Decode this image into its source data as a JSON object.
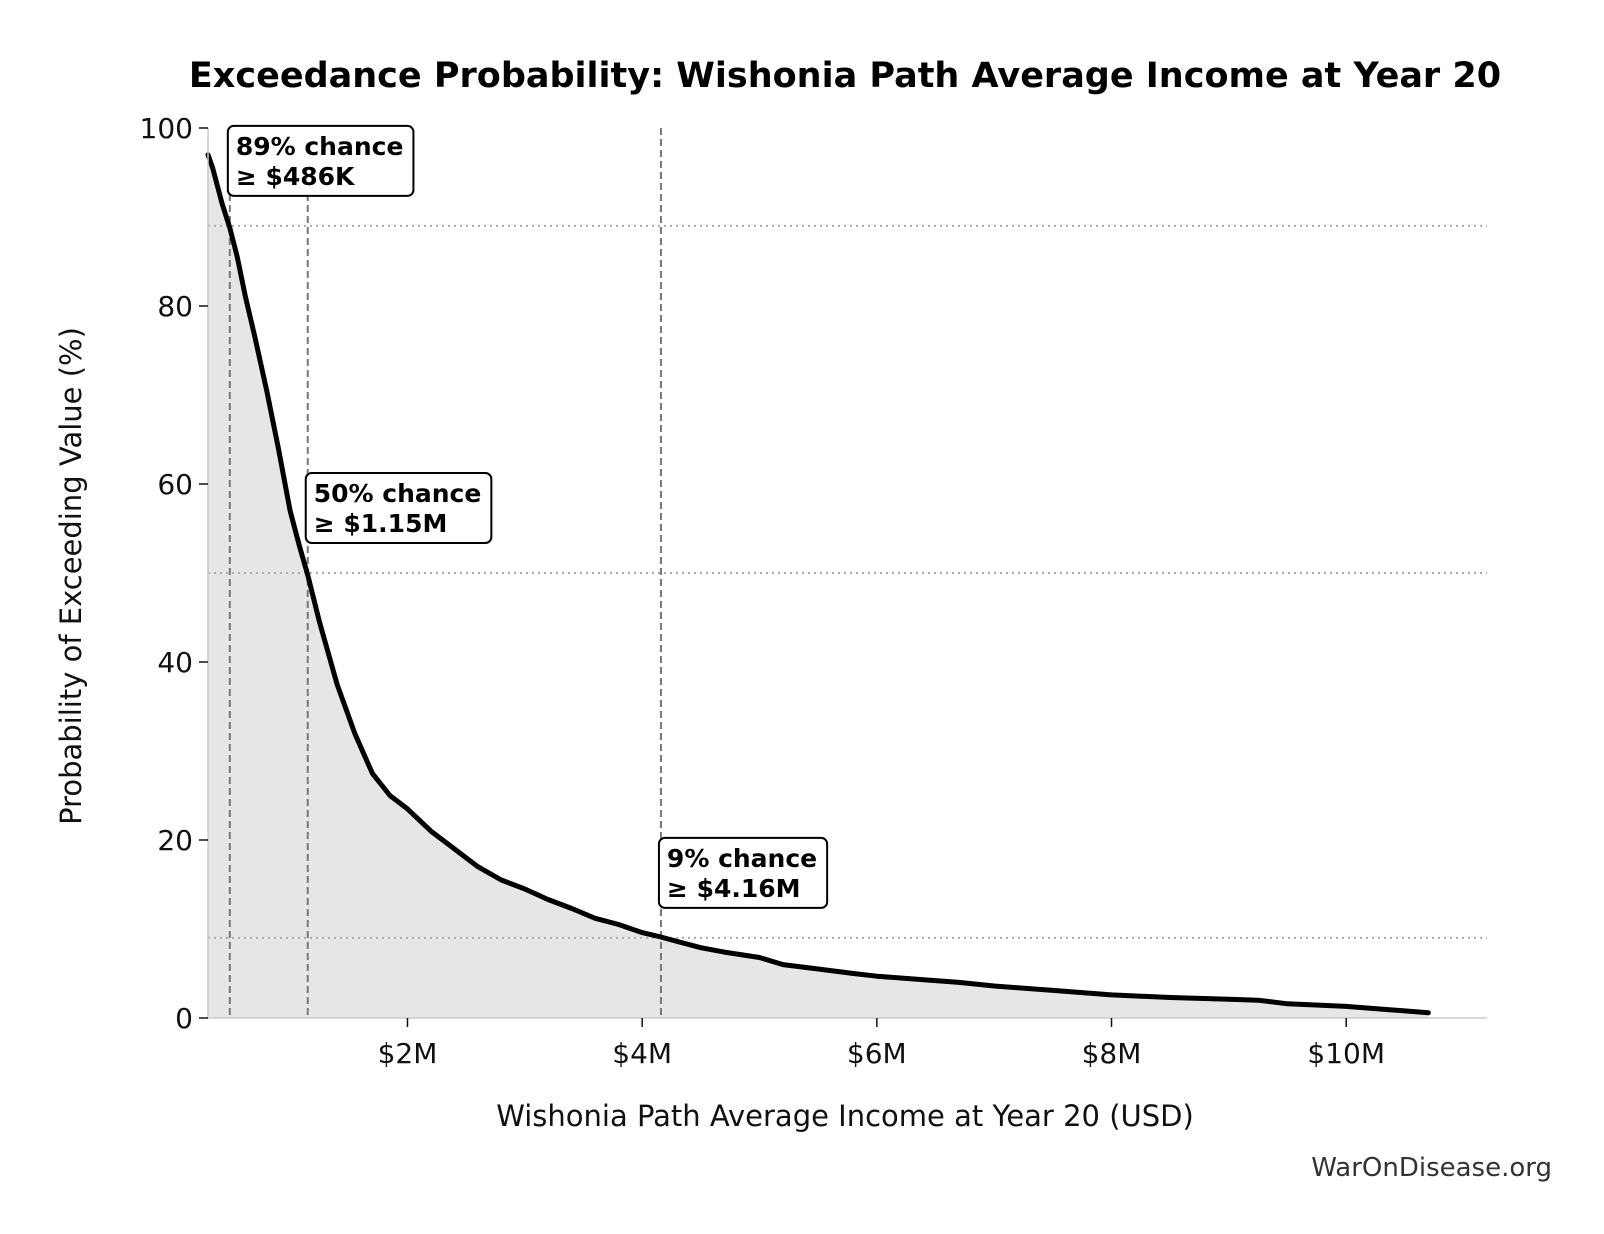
{
  "chart_data": {
    "type": "area",
    "title": "Exceedance Probability: Wishonia Path Average Income at Year 20",
    "xlabel": "Wishonia Path Average Income at Year 20 (USD)",
    "ylabel": "Probability of Exceeding Value (%)",
    "xlim": [
      300000,
      11200000
    ],
    "ylim": [
      0,
      100
    ],
    "x_ticks": [
      {
        "value": 2000000,
        "label": "$2M"
      },
      {
        "value": 4000000,
        "label": "$4M"
      },
      {
        "value": 6000000,
        "label": "$6M"
      },
      {
        "value": 8000000,
        "label": "$8M"
      },
      {
        "value": 10000000,
        "label": "$10M"
      }
    ],
    "y_ticks": [
      {
        "value": 0,
        "label": "0"
      },
      {
        "value": 20,
        "label": "20"
      },
      {
        "value": 40,
        "label": "40"
      },
      {
        "value": 60,
        "label": "60"
      },
      {
        "value": 80,
        "label": "80"
      },
      {
        "value": 100,
        "label": "100"
      }
    ],
    "series": [
      {
        "x": [
          300000,
          340000,
          380000,
          420000,
          486000,
          550000,
          620000,
          700000,
          800000,
          900000,
          1000000,
          1080000,
          1150000,
          1250000,
          1400000,
          1550000,
          1700000,
          1850000,
          2000000,
          2200000,
          2400000,
          2600000,
          2800000,
          3000000,
          3200000,
          3400000,
          3600000,
          3800000,
          4000000,
          4160000,
          4300000,
          4500000,
          4700000,
          5000000,
          5200000,
          5500000,
          5800000,
          6000000,
          6400000,
          6700000,
          7000000,
          7500000,
          8000000,
          8500000,
          9000000,
          9250000,
          9500000,
          10000000,
          10300000,
          10700000
        ],
        "y": [
          97,
          95.5,
          93.5,
          91.5,
          88.8,
          85.5,
          81,
          76.5,
          70.5,
          64,
          57,
          53,
          49.8,
          44.5,
          37.5,
          32,
          27.5,
          25,
          23.5,
          21,
          19,
          17,
          15.5,
          14.5,
          13.3,
          12.3,
          11.2,
          10.5,
          9.6,
          9.1,
          8.6,
          7.9,
          7.4,
          6.8,
          6.0,
          5.5,
          5.0,
          4.7,
          4.3,
          4.0,
          3.6,
          3.1,
          2.6,
          2.3,
          2.1,
          2.0,
          1.6,
          1.3,
          1.0,
          0.6
        ]
      }
    ],
    "reference_lines": {
      "vertical": [
        486000,
        1150000,
        4160000
      ],
      "horizontal": [
        89,
        50,
        9
      ]
    },
    "annotations": [
      {
        "x": 486000,
        "y": 89,
        "line1": "89% chance",
        "line2": "≥ $486K"
      },
      {
        "x": 1150000,
        "y": 50,
        "line1": "50% chance",
        "line2": "≥ $1.15M"
      },
      {
        "x": 4160000,
        "y": 9,
        "line1": "9% chance",
        "line2": "≥ $4.16M"
      }
    ],
    "watermark": "WarOnDisease.org",
    "grid": false,
    "colors": {
      "line": "#000000",
      "fill": "#e6e6e6",
      "ref_vertical": "#777777",
      "ref_horizontal": "#aaaaaa"
    }
  }
}
